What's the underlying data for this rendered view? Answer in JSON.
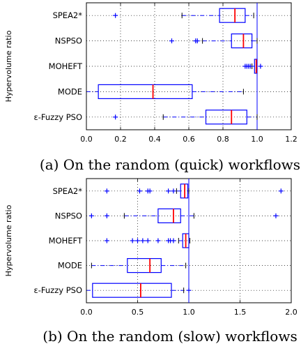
{
  "figure": {
    "charts": [
      {
        "caption": "(a) On the random (quick) workflows"
      },
      {
        "caption": "(b) On the random (slow) workflows"
      }
    ]
  },
  "colors": {
    "box": "#0000ff",
    "median": "#ff0000",
    "reference_line": "#0000ff",
    "grid": "#000000"
  },
  "chart_data": [
    {
      "type": "boxplot",
      "orientation": "horizontal",
      "title": "",
      "xlabel": "",
      "ylabel": "Hypervolume ratio",
      "xlim": [
        0.0,
        1.2
      ],
      "xticks": [
        "0.0",
        "0.2",
        "0.4",
        "0.6",
        "0.8",
        "1.0",
        "1.2"
      ],
      "grid": true,
      "reference_line_x": 1.0,
      "categories": [
        "SPEA2*",
        "NSPSO",
        "MOHEFT",
        "MODE",
        "ε-Fuzzy PSO"
      ],
      "boxes": [
        {
          "name": "SPEA2*",
          "whisker_low": 0.56,
          "q1": 0.78,
          "median": 0.87,
          "q3": 0.93,
          "whisker_high": 0.98,
          "outliers": [
            0.17
          ]
        },
        {
          "name": "NSPSO",
          "whisker_low": 0.68,
          "q1": 0.85,
          "median": 0.92,
          "q3": 0.97,
          "whisker_high": 1.0,
          "outliers": [
            0.5,
            0.64,
            0.65
          ]
        },
        {
          "name": "MOHEFT",
          "whisker_low": 0.97,
          "q1": 0.985,
          "median": 0.995,
          "q3": 1.0,
          "whisker_high": 1.0,
          "outliers": [
            0.93,
            0.94,
            0.95,
            0.96,
            1.02
          ]
        },
        {
          "name": "MODE",
          "whisker_low": 0.0,
          "q1": 0.07,
          "median": 0.39,
          "q3": 0.62,
          "whisker_high": 0.92,
          "outliers": []
        },
        {
          "name": "ε-Fuzzy PSO",
          "whisker_low": 0.45,
          "q1": 0.7,
          "median": 0.85,
          "q3": 0.94,
          "whisker_high": 1.0,
          "outliers": [
            0.17
          ]
        }
      ]
    },
    {
      "type": "boxplot",
      "orientation": "horizontal",
      "title": "",
      "xlabel": "",
      "ylabel": "Hypervolume ratio",
      "xlim": [
        0.0,
        2.0
      ],
      "xticks": [
        "0.0",
        "0.5",
        "1.0",
        "1.5",
        "2.0"
      ],
      "grid": true,
      "reference_line_x": 1.0,
      "categories": [
        "SPEA2*",
        "NSPSO",
        "MOHEFT",
        "MODE",
        "ε-Fuzzy PSO"
      ],
      "boxes": [
        {
          "name": "SPEA2*",
          "whisker_low": 0.88,
          "q1": 0.92,
          "median": 0.96,
          "q3": 0.99,
          "whisker_high": 1.0,
          "outliers": [
            0.2,
            0.52,
            0.6,
            0.62,
            0.8,
            0.85,
            1.9
          ]
        },
        {
          "name": "NSPSO",
          "whisker_low": 0.37,
          "q1": 0.7,
          "median": 0.85,
          "q3": 0.92,
          "whisker_high": 1.05,
          "outliers": [
            0.05,
            0.2,
            1.85
          ]
        },
        {
          "name": "MOHEFT",
          "whisker_low": 0.9,
          "q1": 0.94,
          "median": 0.97,
          "q3": 1.0,
          "whisker_high": 1.01,
          "outliers": [
            0.2,
            0.45,
            0.5,
            0.55,
            0.6,
            0.7,
            0.8,
            0.82,
            0.85
          ]
        },
        {
          "name": "MODE",
          "whisker_low": 0.05,
          "q1": 0.4,
          "median": 0.62,
          "q3": 0.73,
          "whisker_high": 0.97,
          "outliers": []
        },
        {
          "name": "ε-Fuzzy PSO",
          "whisker_low": 0.0,
          "q1": 0.06,
          "median": 0.53,
          "q3": 0.83,
          "whisker_high": 0.95,
          "outliers": [
            1.0
          ]
        }
      ]
    }
  ]
}
